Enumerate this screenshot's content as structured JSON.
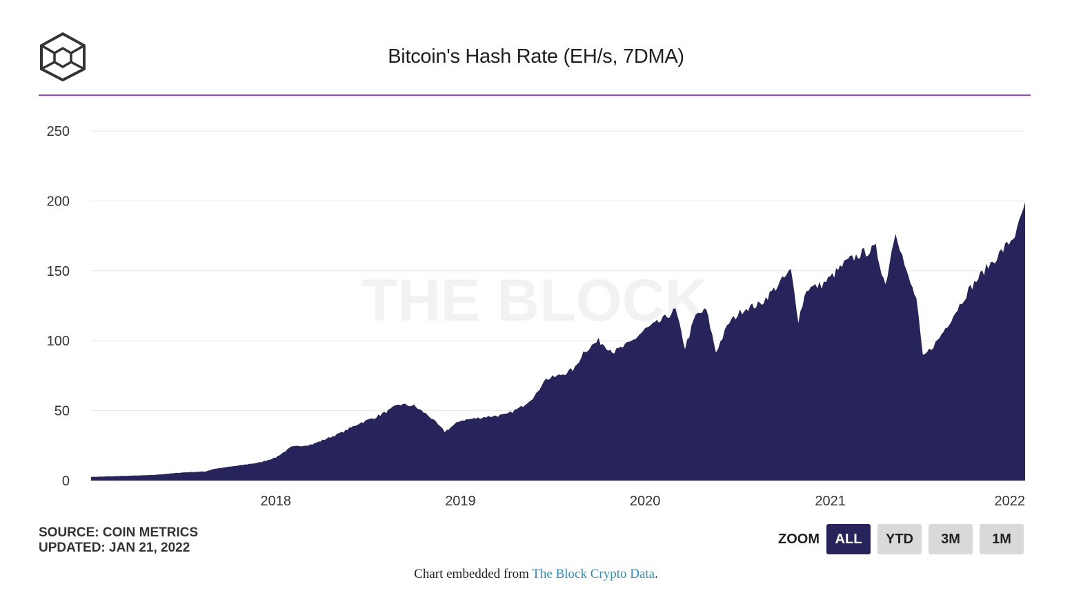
{
  "header": {
    "title": "Bitcoin's Hash Rate (EH/s, 7DMA)",
    "logo_icon": "the-block-cube-icon"
  },
  "watermark": "THE BLOCK",
  "colors": {
    "area_fill": "#26245a",
    "accent_rule": "#9b3fe0",
    "link": "#2b8fc0",
    "active_button": "#26245a"
  },
  "source": {
    "line1": "SOURCE: COIN METRICS",
    "line2": "UPDATED: JAN 21, 2022"
  },
  "zoom": {
    "label": "ZOOM",
    "buttons": [
      "ALL",
      "YTD",
      "3M",
      "1M"
    ],
    "active": "ALL"
  },
  "footer": {
    "prefix": "Chart embedded from ",
    "link_text": "The Block Crypto Data",
    "suffix": "."
  },
  "chart_data": {
    "type": "area",
    "title": "Bitcoin's Hash Rate (EH/s, 7DMA)",
    "x_ticks": [
      "2018",
      "2019",
      "2020",
      "2021",
      "2022"
    ],
    "y_ticks": [
      0,
      50,
      100,
      150,
      200,
      250
    ],
    "xlim": [
      "2017-01-01",
      "2022-01-21"
    ],
    "ylim": [
      0,
      250
    ],
    "grid": true,
    "series": [
      {
        "points": [
          [
            "2017-01-01",
            2.6
          ],
          [
            "2017-03-01",
            3.3
          ],
          [
            "2017-05-01",
            3.9
          ],
          [
            "2017-07-01",
            5.8
          ],
          [
            "2017-08-15",
            6.5
          ],
          [
            "2017-09-01",
            8.4
          ],
          [
            "2017-10-15",
            10.5
          ],
          [
            "2017-12-01",
            13.0
          ],
          [
            "2018-01-01",
            16.5
          ],
          [
            "2018-02-01",
            24.0
          ],
          [
            "2018-03-15",
            26.0
          ],
          [
            "2018-04-15",
            30.5
          ],
          [
            "2018-05-15",
            35.0
          ],
          [
            "2018-06-15",
            41.0
          ],
          [
            "2018-07-15",
            45.0
          ],
          [
            "2018-08-15",
            50.5
          ],
          [
            "2018-09-01",
            54.5
          ],
          [
            "2018-10-01",
            53.5
          ],
          [
            "2018-11-01",
            46.0
          ],
          [
            "2018-12-01",
            35.0
          ],
          [
            "2019-01-01",
            43.0
          ],
          [
            "2019-02-01",
            44.5
          ],
          [
            "2019-03-01",
            46.0
          ],
          [
            "2019-04-01",
            47.0
          ],
          [
            "2019-05-01",
            52.5
          ],
          [
            "2019-06-01",
            62.0
          ],
          [
            "2019-06-15",
            72.0
          ],
          [
            "2019-07-15",
            75.0
          ],
          [
            "2019-08-15",
            80.0
          ],
          [
            "2019-09-01",
            92.0
          ],
          [
            "2019-10-01",
            100.0
          ],
          [
            "2019-11-01",
            92.0
          ],
          [
            "2019-12-01",
            98.0
          ],
          [
            "2020-01-01",
            108.0
          ],
          [
            "2020-02-01",
            114.0
          ],
          [
            "2020-03-01",
            122.0
          ],
          [
            "2020-03-20",
            95.0
          ],
          [
            "2020-04-10",
            118.0
          ],
          [
            "2020-05-01",
            122.0
          ],
          [
            "2020-05-20",
            92.0
          ],
          [
            "2020-06-15",
            113.0
          ],
          [
            "2020-07-15",
            123.0
          ],
          [
            "2020-08-15",
            126.0
          ],
          [
            "2020-09-15",
            138.0
          ],
          [
            "2020-10-15",
            150.0
          ],
          [
            "2020-10-30",
            115.0
          ],
          [
            "2020-11-15",
            137.0
          ],
          [
            "2020-12-15",
            140.0
          ],
          [
            "2021-01-01",
            145.0
          ],
          [
            "2021-02-01",
            156.0
          ],
          [
            "2021-03-01",
            162.0
          ],
          [
            "2021-04-01",
            166.0
          ],
          [
            "2021-04-20",
            140.0
          ],
          [
            "2021-05-10",
            180.0
          ],
          [
            "2021-06-01",
            148.0
          ],
          [
            "2021-06-20",
            130.0
          ],
          [
            "2021-07-03",
            88.0
          ],
          [
            "2021-08-01",
            100.0
          ],
          [
            "2021-09-01",
            118.0
          ],
          [
            "2021-10-01",
            136.0
          ],
          [
            "2021-11-01",
            150.0
          ],
          [
            "2021-12-01",
            162.0
          ],
          [
            "2021-12-20",
            170.0
          ],
          [
            "2022-01-05",
            178.0
          ],
          [
            "2022-01-21",
            199.0
          ]
        ]
      }
    ]
  }
}
